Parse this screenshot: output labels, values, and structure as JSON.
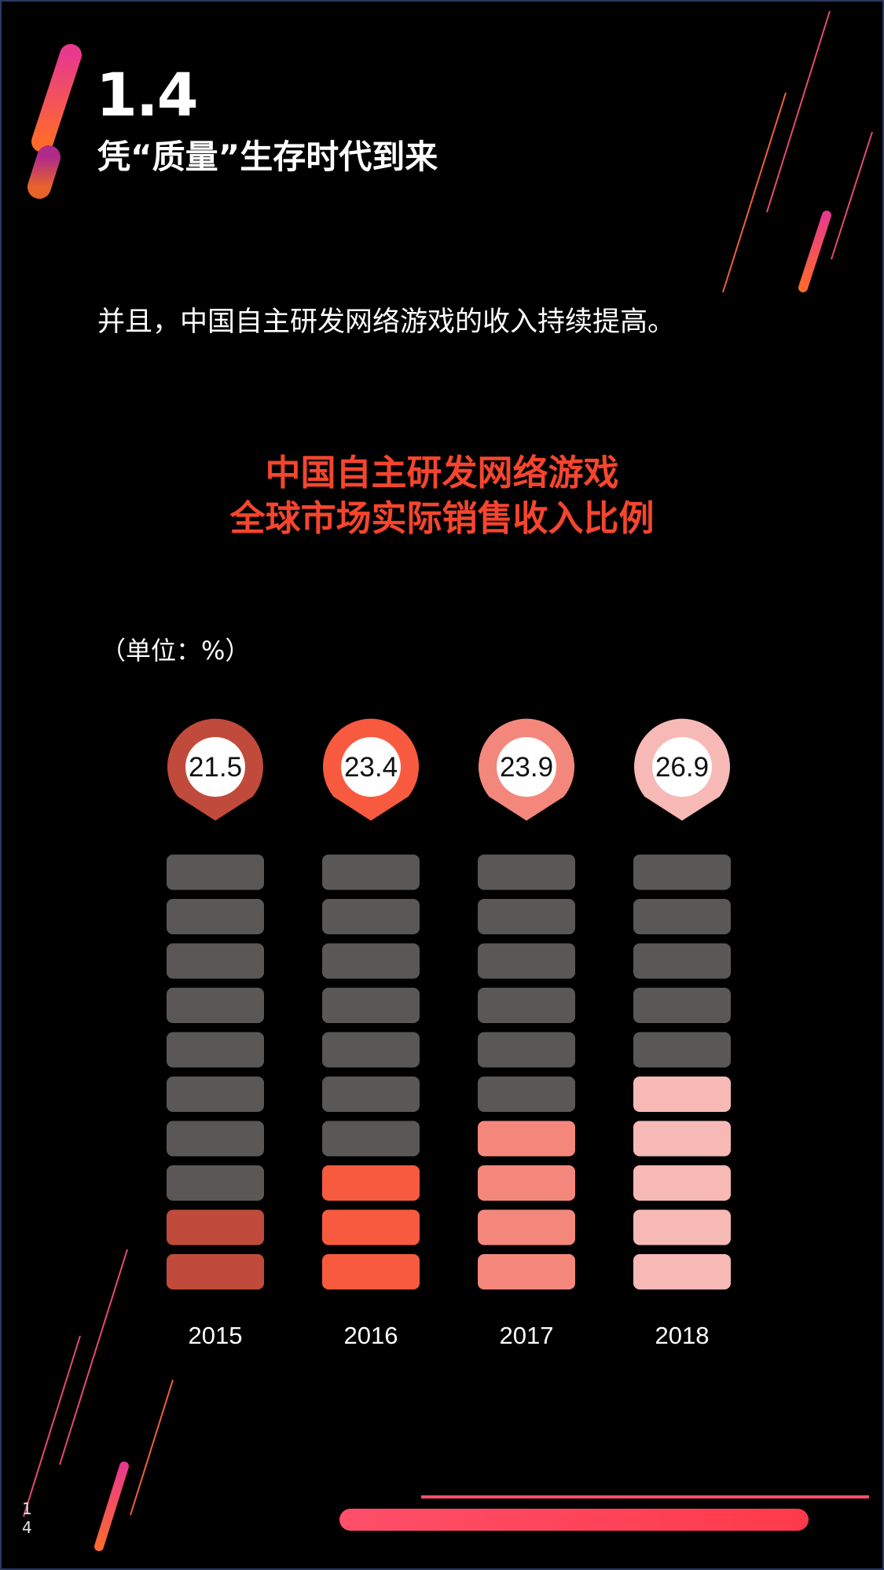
{
  "header": {
    "section_number": "1.4",
    "section_title": "凭“质量”生存时代到来"
  },
  "intro_text": "并且，中国自主研发网络游戏的收入持续提高。",
  "chart_heading": {
    "line1": "中国自主研发网络游戏",
    "line2": "全球市场实际销售收入比例"
  },
  "unit_label": "（单位：%）",
  "page_number": "14",
  "colors": {
    "background": "#000000",
    "title_accent": "#f5452e",
    "empty_segment": "#595857",
    "accent_gradient_start": "#e83a8c",
    "accent_gradient_end": "#ff6a2c"
  },
  "chart_data": {
    "type": "bar",
    "title": "中国自主研发网络游戏 全球市场实际销售收入比例",
    "unit": "（单位：%）",
    "categories": [
      "2015",
      "2016",
      "2017",
      "2018"
    ],
    "values": [
      21.5,
      23.4,
      23.9,
      26.9
    ],
    "value_labels": [
      "21.5",
      "23.4",
      "23.9",
      "26.9"
    ],
    "filled_segments": [
      2,
      3,
      4,
      5
    ],
    "total_segments": 10,
    "colors": [
      "#c04a3b",
      "#f85a3f",
      "#f4877b",
      "#f6b9b6"
    ]
  }
}
